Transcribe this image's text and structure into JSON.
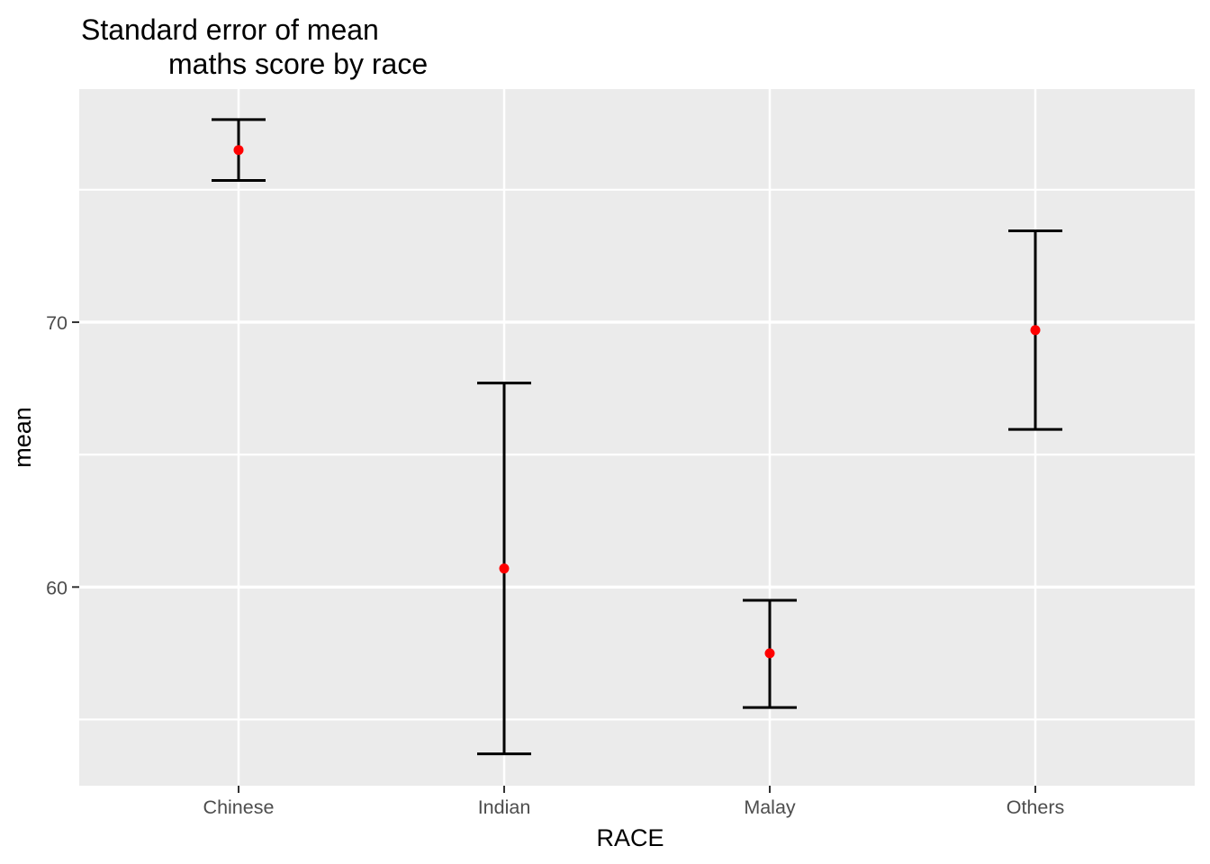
{
  "title": {
    "line1": "Standard error of mean",
    "line2": "maths score by race"
  },
  "axes": {
    "x_title": "RACE",
    "y_title": "mean"
  },
  "chart_data": {
    "type": "scatter",
    "subtype": "pointrange-errorbar",
    "title": "Standard error of mean\n        maths score by race",
    "xlabel": "RACE",
    "ylabel": "mean",
    "categories": [
      "Chinese",
      "Indian",
      "Malay",
      "Others"
    ],
    "series": [
      {
        "name": "mean",
        "values": [
          76.5,
          60.7,
          57.5,
          69.7
        ]
      },
      {
        "name": "upper",
        "values": [
          77.65,
          67.7,
          59.5,
          73.45
        ]
      },
      {
        "name": "lower",
        "values": [
          75.35,
          53.7,
          55.45,
          65.95
        ]
      }
    ],
    "ylim": [
      52.5,
      78.8
    ],
    "y_major_ticks": [
      60,
      70
    ],
    "y_major_tick_labels": [
      "60",
      "70"
    ],
    "y_minor_gridlines": [
      55,
      65,
      75
    ],
    "grid": "on",
    "legend": "none",
    "colors": {
      "point": "#FF0000",
      "errorbar": "#000000",
      "panel_background": "#EBEBEB",
      "gridline": "#FFFFFF",
      "tick_label": "#4D4D4D",
      "tick_mark": "#333333",
      "page_background": "#FFFFFF"
    }
  }
}
